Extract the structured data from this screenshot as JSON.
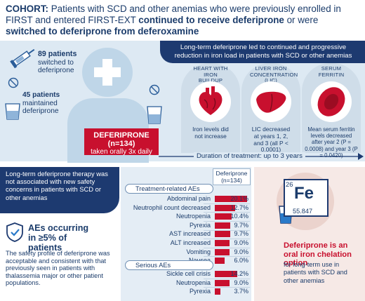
{
  "cohort": {
    "label": "COHORT:",
    "text_1": " Patients with SCD and other anemias who were previously enrolled in FIRST and entered FIRST-EXT ",
    "bold_1": "continued to receive deferiprone",
    "text_2": " or were ",
    "bold_2": "switched to deferiprone from deferoxamine"
  },
  "groups": {
    "switched_count": "89 patients",
    "switched_label": "switched to deferiprone",
    "maintained_count": "45 patients",
    "maintained_label": "maintained deferiprone"
  },
  "treatment": {
    "drug": "DEFERIPRONE",
    "n": "(n=134)",
    "dosing": "taken orally 3x daily",
    "duration": "Duration of treatment: up to 3 years"
  },
  "efficacy": {
    "banner": "Long-term deferiprone led to continued and progressive reduction in iron load in patients with SCD or other anemias",
    "cards": [
      {
        "title": "HEART WITH IRON BUILDUP",
        "text": "Iron levels did not increase"
      },
      {
        "title": "LIVER IRON CONCENTRATION (LIC)",
        "text": "LIC decreased at years 1, 2, and 3 (all P < 0.0001)"
      },
      {
        "title": "SERUM FERRITIN",
        "text": "Mean serum ferritin levels decreased after year 2 (P = 0.0008) and year 3 (P = 0.0420)"
      }
    ]
  },
  "safety": {
    "banner": "Long-term deferiprone therapy was not associated with new safety concerns in patients with SCD or other anemias",
    "ae_heading": "AEs occurring in ≥5% of patients",
    "body": "The safety profile of deferiprone was acceptable and consistent with that previously seen in patients with thalassemia major or other patient populations."
  },
  "chart_data": {
    "type": "bar",
    "title": "",
    "column_header": "Deferiprone (n=134)",
    "unit": "%",
    "series": [
      {
        "name": "Treatment-related AEs",
        "categories": [
          "Abdominal pain",
          "Neutrophil count decreased",
          "Neutropenia",
          "Pyrexia",
          "AST increased",
          "ALT increased",
          "Vomiting",
          "Nausea"
        ],
        "values": [
          20.1,
          12.7,
          10.4,
          9.7,
          9.7,
          9.0,
          9.0,
          6.0
        ],
        "labels": [
          "20.1%",
          "12.7%",
          "10.4%",
          "9.7%",
          "9.7%",
          "9.0%",
          "9.0%",
          "6.0%"
        ]
      },
      {
        "name": "Serious AEs",
        "categories": [
          "Sickle cell crisis",
          "Neutropenia",
          "Pyrexia"
        ],
        "values": [
          14.2,
          9.0,
          3.7
        ],
        "labels": [
          "14.2%",
          "9.0%",
          "3.7%"
        ]
      }
    ]
  },
  "iron": {
    "atomic_number": "26",
    "symbol": "Fe",
    "atomic_mass": "55.847",
    "heading": "Deferiprone is an oral iron chelation option",
    "body": "for long-term use in patients with SCD and other anemias"
  },
  "colors": {
    "navy": "#1d3a70",
    "red": "#c8102e",
    "light_blue": "#dde9f3",
    "pink": "#f6e9e6"
  }
}
